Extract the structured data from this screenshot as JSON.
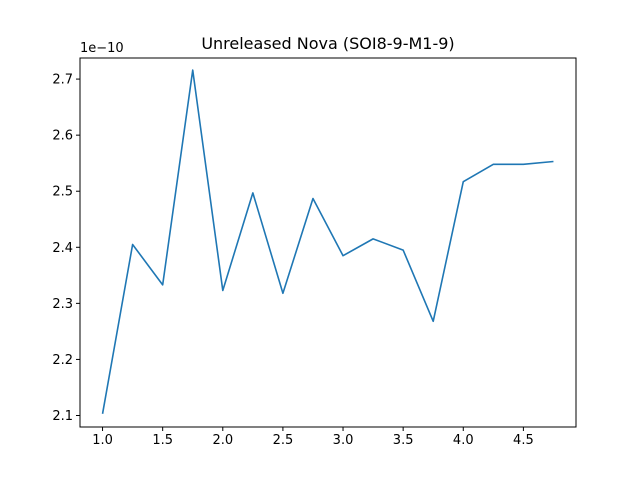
{
  "chart_data": {
    "type": "line",
    "title": "Unreleased Nova (SOI8-9-M1-9)",
    "xlabel": "",
    "ylabel": "",
    "y_offset_label": "1e−10",
    "y_scale": 1e-10,
    "grid": false,
    "xlim": [
      0.8125,
      4.9375
    ],
    "ylim": [
      2.0795e-10,
      2.7376e-10
    ],
    "x_ticks": [
      1.0,
      1.5,
      2.0,
      2.5,
      3.0,
      3.5,
      4.0,
      4.5
    ],
    "x_tick_labels": [
      "1.0",
      "1.5",
      "2.0",
      "2.5",
      "3.0",
      "3.5",
      "4.0",
      "4.5"
    ],
    "y_ticks": [
      2.1e-10,
      2.2e-10,
      2.3e-10,
      2.4e-10,
      2.5e-10,
      2.6e-10,
      2.7e-10
    ],
    "y_tick_labels": [
      "2.1",
      "2.2",
      "2.3",
      "2.4",
      "2.5",
      "2.6",
      "2.7"
    ],
    "series": [
      {
        "color": "#1f77b4",
        "x": [
          1.0,
          1.25,
          1.5,
          1.75,
          2.0,
          2.25,
          2.5,
          2.75,
          3.0,
          3.25,
          3.5,
          3.75,
          4.0,
          4.25,
          4.5,
          4.75
        ],
        "y": [
          2.103e-10,
          2.405e-10,
          2.333e-10,
          2.716e-10,
          2.323e-10,
          2.497e-10,
          2.318e-10,
          2.487e-10,
          2.385e-10,
          2.415e-10,
          2.395e-10,
          2.268e-10,
          2.517e-10,
          2.548e-10,
          2.548e-10,
          2.553e-10
        ]
      }
    ]
  }
}
